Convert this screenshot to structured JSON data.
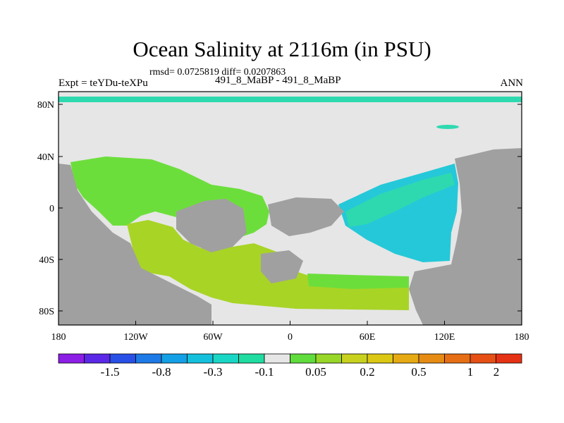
{
  "title": "Ocean Salinity at 2116m (in PSU)",
  "stats": "rmsd= 0.0725819 diff= 0.0207863",
  "comparison": "491_8_MaBP - 491_8_MaBP",
  "experiment": "Expt = teYDu-teXPu",
  "season": "ANN",
  "map": {
    "lat_ticks": [
      "80N",
      "40N",
      "0",
      "40S",
      "80S"
    ],
    "lon_ticks": [
      "180",
      "120W",
      "60W",
      "0",
      "60E",
      "120E",
      "180"
    ],
    "colors": {
      "land": "#a0a0a0",
      "no_change": "#e6e6e6",
      "teal": "#2fd9b0",
      "cyan": "#25c8d8",
      "light_green": "#6cde3c",
      "yellow_green": "#a8d426"
    }
  },
  "colorbar": {
    "colors": [
      "#8c1ee6",
      "#5a28e6",
      "#2850e6",
      "#1e7ae6",
      "#14a0e6",
      "#14c0dc",
      "#1ad6c4",
      "#20dca0",
      "#e6e6e6",
      "#60dc3c",
      "#98d628",
      "#c8d21e",
      "#dcc814",
      "#e6aa14",
      "#e68c14",
      "#e66e14",
      "#e65014",
      "#e63214"
    ],
    "labels": [
      "-1.5",
      "-0.8",
      "-0.3",
      "-0.1",
      "0.05",
      "0.2",
      "0.5",
      "1",
      "2"
    ]
  }
}
